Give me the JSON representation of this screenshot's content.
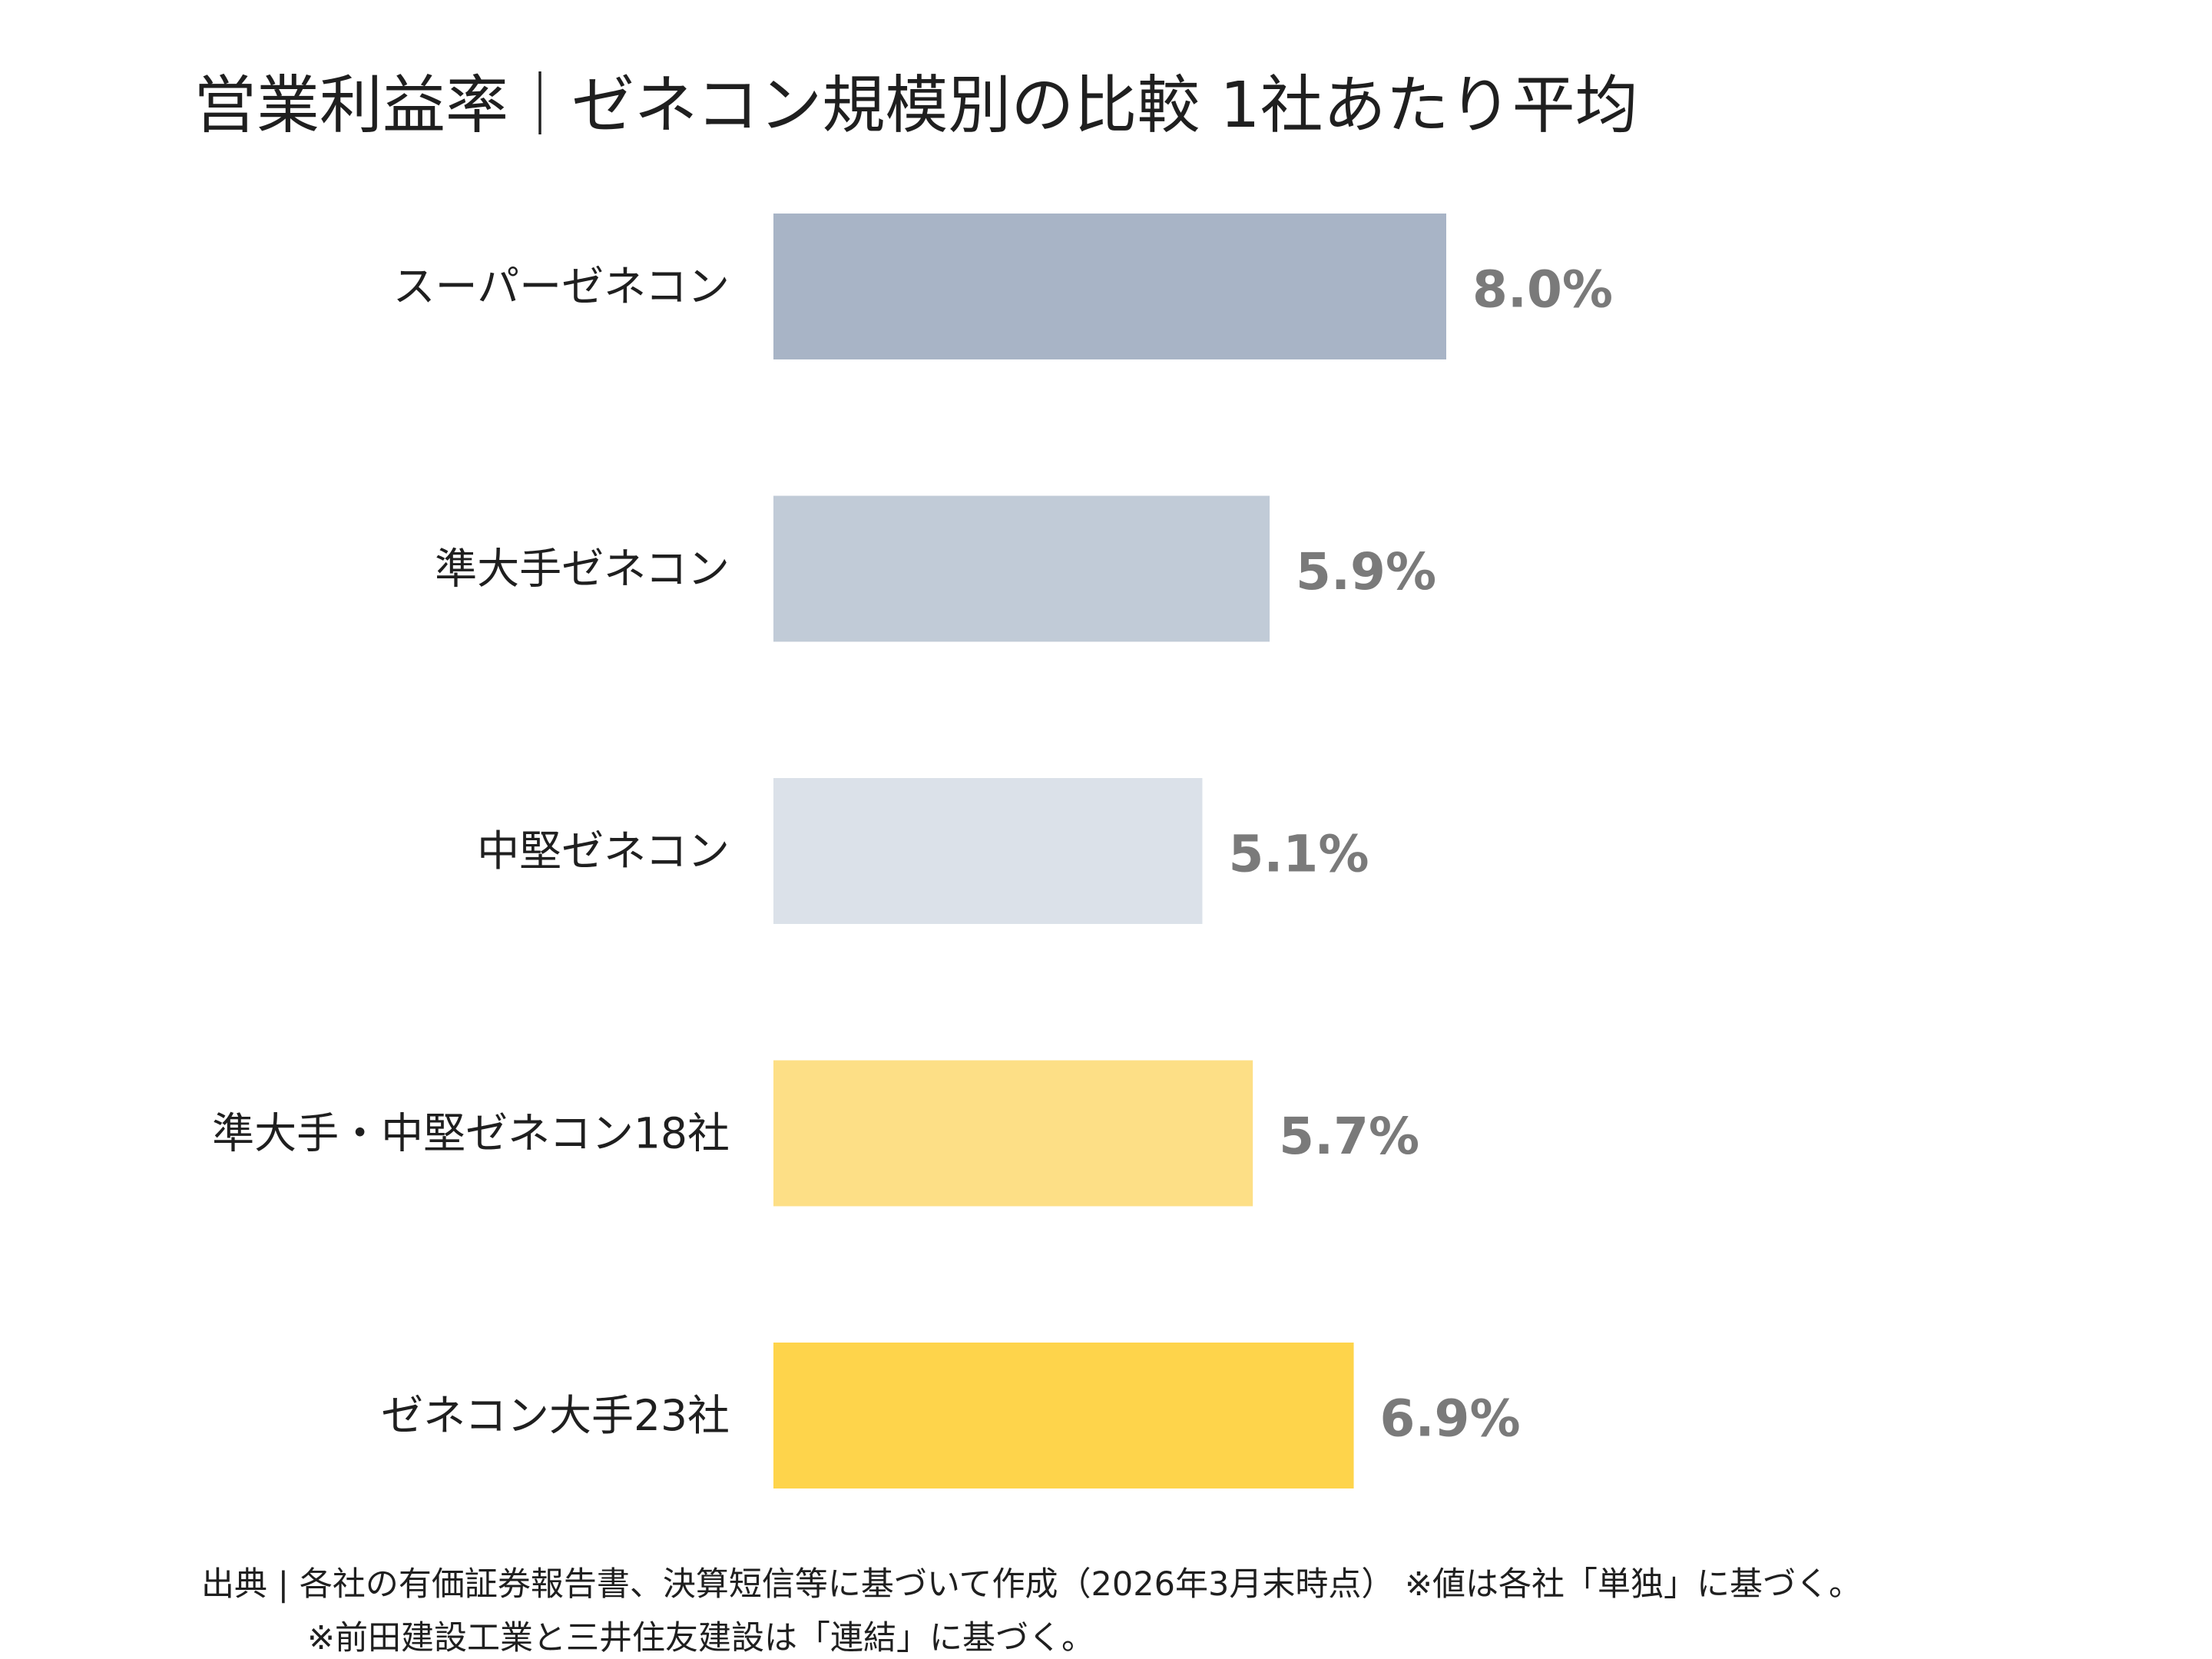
{
  "chart_data": {
    "type": "bar",
    "orientation": "horizontal",
    "title": "営業利益率｜ゼネコン規模別の比較 1社あたり平均",
    "categories": [
      "スーパーゼネコン",
      "準大手ゼネコン",
      "中堅ゼネコン",
      "準大手・中堅ゼネコン18社",
      "ゼネコン大手23社"
    ],
    "values": [
      8.0,
      5.9,
      5.1,
      5.7,
      6.9
    ],
    "value_labels": [
      "8.0%",
      "5.9%",
      "5.1%",
      "5.7%",
      "6.9%"
    ],
    "unit": "%",
    "colors": [
      "#a8b4c6",
      "#c1cbd7",
      "#dbe1e9",
      "#fddf86",
      "#fed44b"
    ],
    "value_label_color": "#7a7a7a",
    "xlim": [
      0,
      8.0
    ],
    "grid": false,
    "legend": "none"
  },
  "source": {
    "line1": "出典 | 各社の有価証券報告書、決算短信等に基づいて作成（2026年3月末時点） ※値は各社「単独」に基づく。",
    "line2": "※前田建設工業と三井住友建設は「連結」に基づく。"
  }
}
